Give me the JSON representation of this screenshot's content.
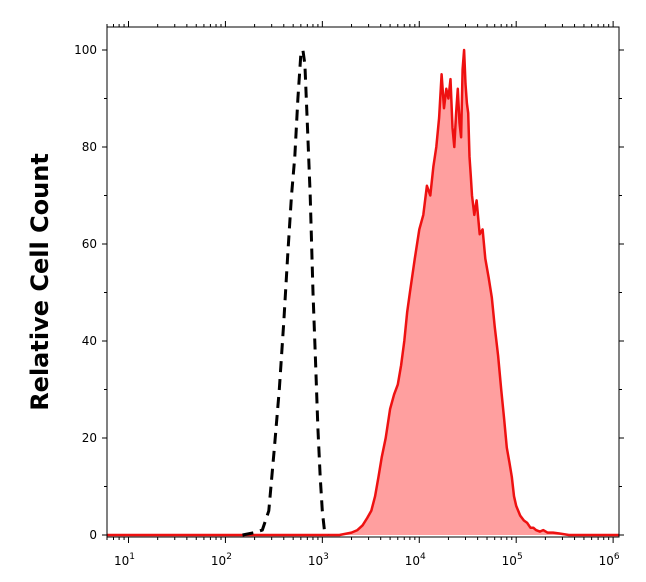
{
  "chart_data": {
    "type": "area",
    "title": "",
    "xlabel": "",
    "ylabel": "Relative Cell Count",
    "xscale": "log",
    "xlim": [
      6,
      1150000
    ],
    "ylim": [
      0,
      103
    ],
    "grid": false,
    "legend": "none",
    "x_ticks": [
      {
        "value": 10,
        "base": "10",
        "exp": "1"
      },
      {
        "value": 100,
        "base": "10",
        "exp": "2"
      },
      {
        "value": 1000,
        "base": "10",
        "exp": "3"
      },
      {
        "value": 10000,
        "base": "10",
        "exp": "4"
      },
      {
        "value": 100000,
        "base": "10",
        "exp": "5"
      },
      {
        "value": 1000000,
        "base": "10",
        "exp": "6"
      }
    ],
    "y_ticks": [
      0,
      20,
      40,
      60,
      80,
      100
    ],
    "series": [
      {
        "style": "dashed",
        "color": "#000000",
        "fill": "none",
        "x": [
          150,
          200,
          240,
          280,
          320,
          360,
          400,
          440,
          480,
          520,
          560,
          600,
          630,
          660,
          700,
          750,
          800,
          850,
          900,
          950,
          1000,
          1050,
          1150
        ],
        "y": [
          0,
          0.5,
          1,
          5,
          18,
          30,
          44,
          58,
          70,
          78,
          90,
          99,
          100,
          97,
          85,
          70,
          50,
          36,
          22,
          12,
          5,
          1,
          0
        ]
      },
      {
        "style": "solid",
        "color": "#ee1111",
        "fill": "#ff9f9f",
        "x": [
          6,
          1500,
          2000,
          2300,
          2600,
          2900,
          3200,
          3500,
          3800,
          4100,
          4500,
          5000,
          5500,
          6000,
          6500,
          7000,
          7500,
          8000,
          9000,
          10000,
          11000,
          12000,
          13000,
          14000,
          15000,
          16000,
          17000,
          18000,
          19000,
          20000,
          21000,
          22000,
          23000,
          24000,
          25000,
          26000,
          27000,
          28000,
          29000,
          30000,
          31000,
          32000,
          33000,
          34000,
          35000,
          37000,
          39000,
          42000,
          45000,
          48000,
          52000,
          56000,
          60000,
          65000,
          70000,
          75000,
          80000,
          85000,
          90000,
          95000,
          100000,
          110000,
          120000,
          130000,
          140000,
          150000,
          160000,
          175000,
          190000,
          210000,
          240000,
          280000,
          350000,
          500000,
          1150000
        ],
        "y": [
          0,
          0,
          0.5,
          1,
          2,
          3.5,
          5,
          8,
          12,
          16,
          20,
          26,
          29,
          31,
          35,
          40,
          46,
          50,
          57,
          63,
          66,
          72,
          70,
          76,
          80,
          86,
          95,
          88,
          92,
          90,
          94,
          84,
          80,
          87,
          92,
          85,
          82,
          96,
          100,
          93,
          89,
          87,
          78,
          74,
          70,
          66,
          69,
          62,
          63,
          57,
          53,
          49,
          43,
          37,
          30,
          24,
          18,
          15,
          12,
          8,
          6,
          4,
          3,
          2.5,
          1.5,
          1.5,
          1,
          0.7,
          1,
          0.5,
          0.5,
          0.3,
          0,
          0,
          0
        ]
      }
    ]
  }
}
